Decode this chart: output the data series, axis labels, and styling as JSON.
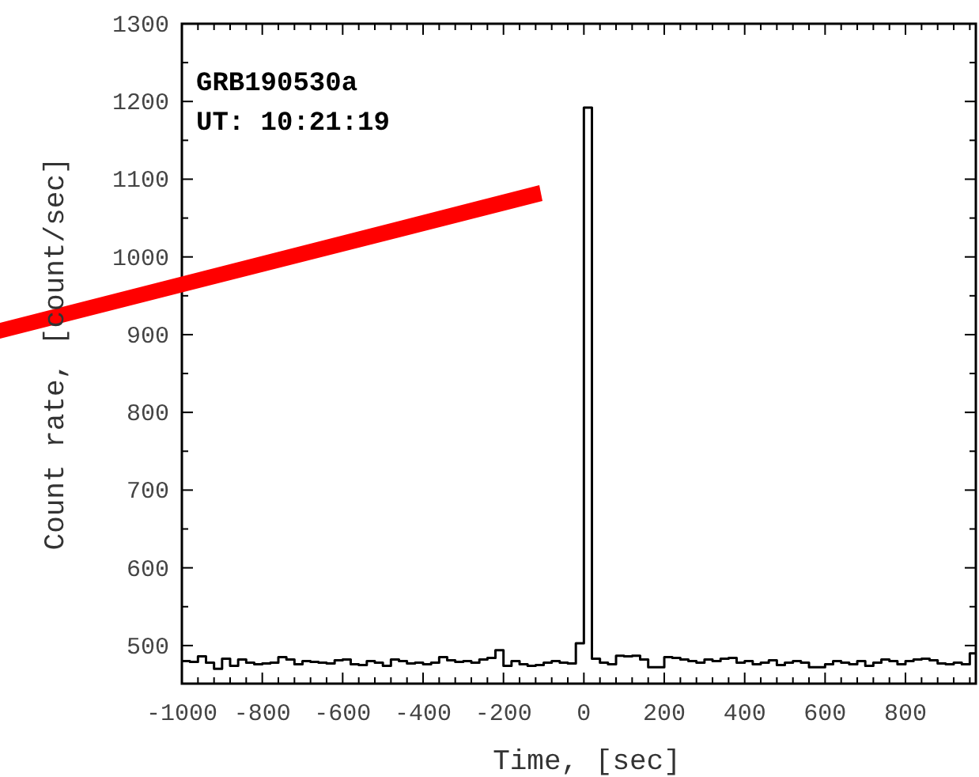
{
  "chart_data": {
    "type": "step",
    "xlabel": "Time, [sec]",
    "ylabel": "Count rate, [count/sec]",
    "annotations": [
      "GRB190530a",
      "UT: 10:21:19"
    ],
    "x": [
      -1000,
      -980,
      -960,
      -940,
      -920,
      -900,
      -880,
      -860,
      -840,
      -820,
      -800,
      -780,
      -760,
      -740,
      -720,
      -700,
      -680,
      -660,
      -640,
      -620,
      -600,
      -580,
      -560,
      -540,
      -520,
      -500,
      -480,
      -460,
      -440,
      -420,
      -400,
      -380,
      -360,
      -340,
      -320,
      -300,
      -280,
      -260,
      -240,
      -220,
      -200,
      -180,
      -160,
      -140,
      -120,
      -100,
      -80,
      -60,
      -40,
      -20,
      0,
      20,
      40,
      60,
      80,
      100,
      120,
      140,
      160,
      180,
      200,
      220,
      240,
      260,
      280,
      300,
      320,
      340,
      360,
      380,
      400,
      420,
      440,
      460,
      480,
      500,
      520,
      540,
      560,
      580,
      600,
      620,
      640,
      660,
      680,
      700,
      720,
      740,
      760,
      780,
      800,
      820,
      840,
      860,
      880,
      900,
      920,
      940,
      960,
      975
    ],
    "series": [
      {
        "color": "#000000",
        "values": [
          480,
          479,
          486,
          478,
          470,
          483,
          474,
          482,
          478,
          476,
          477,
          478,
          485,
          482,
          476,
          480,
          479,
          478,
          477,
          481,
          482,
          476,
          475,
          480,
          478,
          474,
          482,
          480,
          477,
          478,
          476,
          478,
          485,
          481,
          479,
          480,
          478,
          482,
          484,
          494,
          474,
          480,
          476,
          474,
          475,
          478,
          480,
          478,
          477,
          503,
          1192,
          483,
          478,
          476,
          487,
          486,
          487,
          482,
          472,
          472,
          485,
          484,
          482,
          480,
          478,
          482,
          480,
          483,
          484,
          478,
          480,
          476,
          478,
          481,
          475,
          478,
          480,
          478,
          472,
          472,
          476,
          480,
          478,
          476,
          480,
          474,
          478,
          482,
          480,
          476,
          480,
          482,
          483,
          481,
          477,
          476,
          478,
          476,
          490,
          490
        ]
      }
    ],
    "xlim": [
      -1000,
      975
    ],
    "ylim": [
      451,
      1300
    ],
    "xticks": [
      -1000,
      {
        "value": -960,
        "label": null
      },
      {
        "value": -920,
        "label": null
      },
      {
        "value": -880,
        "label": null
      },
      {
        "value": -840,
        "label": null
      },
      -800,
      {
        "value": -760,
        "label": null
      },
      {
        "value": -720,
        "label": null
      },
      {
        "value": -680,
        "label": null
      },
      {
        "value": -640,
        "label": null
      },
      -600,
      {
        "value": -560,
        "label": null
      },
      {
        "value": -520,
        "label": null
      },
      {
        "value": -480,
        "label": null
      },
      {
        "value": -440,
        "label": null
      },
      -400,
      {
        "value": -360,
        "label": null
      },
      {
        "value": -320,
        "label": null
      },
      {
        "value": -280,
        "label": null
      },
      {
        "value": -240,
        "label": null
      },
      -200,
      {
        "value": -160,
        "label": null
      },
      {
        "value": -120,
        "label": null
      },
      {
        "value": -80,
        "label": null
      },
      {
        "value": -40,
        "label": null
      },
      0,
      {
        "value": 40,
        "label": null
      },
      {
        "value": 80,
        "label": null
      },
      {
        "value": 120,
        "label": null
      },
      {
        "value": 160,
        "label": null
      },
      200,
      {
        "value": 240,
        "label": null
      },
      {
        "value": 280,
        "label": null
      },
      {
        "value": 320,
        "label": null
      },
      {
        "value": 360,
        "label": null
      },
      400,
      {
        "value": 440,
        "label": null
      },
      {
        "value": 480,
        "label": null
      },
      {
        "value": 520,
        "label": null
      },
      {
        "value": 560,
        "label": null
      },
      600,
      {
        "value": 640,
        "label": null
      },
      {
        "value": 680,
        "label": null
      },
      {
        "value": 720,
        "label": null
      },
      {
        "value": 760,
        "label": null
      },
      800,
      {
        "value": 840,
        "label": null
      },
      {
        "value": 880,
        "label": null
      },
      {
        "value": 920,
        "label": null
      },
      {
        "value": 960,
        "label": null
      }
    ],
    "yticks": [
      500,
      {
        "value": 550,
        "label": null
      },
      600,
      {
        "value": 650,
        "label": null
      },
      700,
      {
        "value": 750,
        "label": null
      },
      800,
      {
        "value": 850,
        "label": null
      },
      900,
      {
        "value": 950,
        "label": null
      },
      1000,
      {
        "value": 1050,
        "label": null
      },
      1100,
      {
        "value": 1150,
        "label": null
      },
      1200,
      {
        "value": 1250,
        "label": null
      },
      1300
    ],
    "grid": false,
    "line_style": "solid"
  }
}
